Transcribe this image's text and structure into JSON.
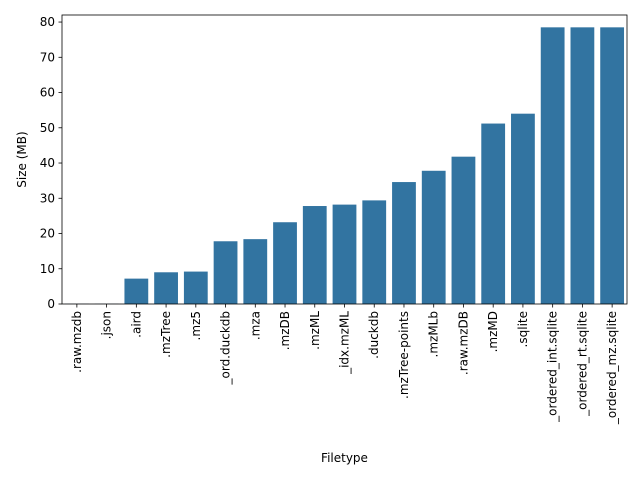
{
  "chart_data": {
    "type": "bar",
    "xlabel": "Filetype",
    "ylabel": "Size (MB)",
    "ylim": [
      0,
      82
    ],
    "yticks": [
      0,
      10,
      20,
      30,
      40,
      50,
      60,
      70,
      80
    ],
    "grid": false,
    "bar_color": "#3274a1",
    "categories": [
      ".raw.mzdb",
      ".json",
      ".aird",
      ".mzTree",
      ".mz5",
      "_ord.duckdb",
      ".mza",
      ".mzDB",
      ".mzML",
      "_idx.mzML",
      ".duckdb",
      ".mzTree-points",
      ".mzMLb",
      ".raw.mzDB",
      ".mzMD",
      ".sqlite",
      "_ordered_int.sqlite",
      "_ordered_rt.sqlite",
      "_ordered_mz.sqlite"
    ],
    "values": [
      0.05,
      0.05,
      7.2,
      9.0,
      9.2,
      17.8,
      18.4,
      23.2,
      27.8,
      28.2,
      29.4,
      34.6,
      37.8,
      41.8,
      51.2,
      54.0,
      78.5,
      78.5,
      78.5
    ]
  }
}
